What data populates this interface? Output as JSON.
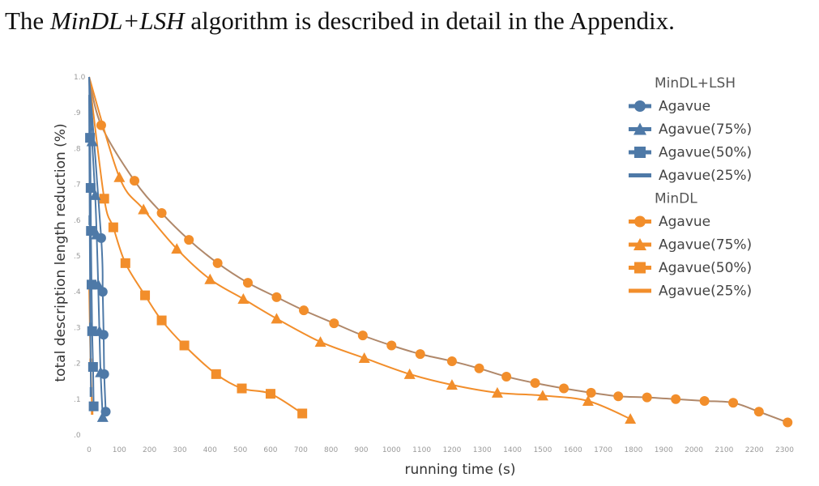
{
  "caption": {
    "prefix": "The ",
    "emph": "MinDL+LSH",
    "suffix": " algorithm is described in detail in the Appendix."
  },
  "colors": {
    "lsh": "#4e79a7",
    "mindl": "#f28e2b",
    "mindl_line": "#b0886a"
  },
  "chart_data": {
    "type": "line",
    "xlabel": "running time (s)",
    "ylabel": "total description length reduction (%)",
    "xlim": [
      0,
      2320
    ],
    "ylim": [
      0,
      1.0
    ],
    "x_ticks": [
      0,
      100,
      200,
      300,
      400,
      500,
      600,
      700,
      800,
      900,
      1000,
      1100,
      1200,
      1300,
      1400,
      1500,
      1600,
      1700,
      1800,
      1900,
      2000,
      2100,
      2200,
      2300
    ],
    "y_ticks": [
      0,
      0.1,
      0.2,
      0.3,
      0.4,
      0.5,
      0.6,
      0.7,
      0.8,
      0.9,
      1.0
    ],
    "y_tick_labels": [
      ".0",
      ".1",
      ".2",
      ".3",
      ".4",
      ".5",
      ".6",
      ".7",
      ".8",
      ".9",
      "1.0"
    ],
    "legend": [
      {
        "title": "MinDL+LSH",
        "items": [
          {
            "label": "Agavue",
            "marker": "circle",
            "color": "#4e79a7"
          },
          {
            "label": "Agavue(75%)",
            "marker": "triangle",
            "color": "#4e79a7"
          },
          {
            "label": "Agavue(50%)",
            "marker": "square",
            "color": "#4e79a7"
          },
          {
            "label": "Agavue(25%)",
            "marker": "bar",
            "color": "#4e79a7"
          }
        ]
      },
      {
        "title": "MinDL",
        "items": [
          {
            "label": "Agavue",
            "marker": "circle",
            "color": "#f28e2b"
          },
          {
            "label": "Agavue(75%)",
            "marker": "triangle",
            "color": "#f28e2b"
          },
          {
            "label": "Agavue(50%)",
            "marker": "square",
            "color": "#f28e2b"
          },
          {
            "label": "Agavue(25%)",
            "marker": "bar",
            "color": "#f28e2b"
          }
        ]
      }
    ],
    "series": [
      {
        "group": "MinDL",
        "marker": "circle",
        "color": "#f28e2b",
        "line_color": "#b0886a",
        "points": [
          [
            0,
            1.0
          ],
          [
            40,
            0.865
          ],
          [
            150,
            0.71
          ],
          [
            240,
            0.62
          ],
          [
            330,
            0.545
          ],
          [
            425,
            0.48
          ],
          [
            525,
            0.425
          ],
          [
            620,
            0.385
          ],
          [
            710,
            0.348
          ],
          [
            810,
            0.312
          ],
          [
            905,
            0.278
          ],
          [
            1000,
            0.25
          ],
          [
            1095,
            0.226
          ],
          [
            1200,
            0.206
          ],
          [
            1290,
            0.186
          ],
          [
            1380,
            0.163
          ],
          [
            1475,
            0.145
          ],
          [
            1570,
            0.13
          ],
          [
            1660,
            0.118
          ],
          [
            1750,
            0.108
          ],
          [
            1845,
            0.105
          ],
          [
            1940,
            0.1
          ],
          [
            2035,
            0.095
          ],
          [
            2130,
            0.09
          ],
          [
            2215,
            0.065
          ],
          [
            2310,
            0.035
          ]
        ]
      },
      {
        "group": "MinDL",
        "marker": "triangle",
        "color": "#f28e2b",
        "points": [
          [
            0,
            1.0
          ],
          [
            100,
            0.72
          ],
          [
            180,
            0.63
          ],
          [
            290,
            0.52
          ],
          [
            400,
            0.435
          ],
          [
            510,
            0.38
          ],
          [
            620,
            0.325
          ],
          [
            765,
            0.26
          ],
          [
            910,
            0.215
          ],
          [
            1060,
            0.17
          ],
          [
            1200,
            0.14
          ],
          [
            1350,
            0.118
          ],
          [
            1500,
            0.11
          ],
          [
            1650,
            0.095
          ],
          [
            1790,
            0.045
          ]
        ]
      },
      {
        "group": "MinDL",
        "marker": "square",
        "color": "#f28e2b",
        "points": [
          [
            0,
            1.0
          ],
          [
            50,
            0.66
          ],
          [
            80,
            0.58
          ],
          [
            120,
            0.48
          ],
          [
            185,
            0.39
          ],
          [
            240,
            0.32
          ],
          [
            315,
            0.25
          ],
          [
            420,
            0.17
          ],
          [
            505,
            0.13
          ],
          [
            600,
            0.115
          ],
          [
            705,
            0.06
          ]
        ]
      },
      {
        "group": "MinDL",
        "marker": "bar",
        "color": "#f28e2b",
        "points": [
          [
            0,
            0.42
          ],
          [
            5,
            0.2
          ],
          [
            10,
            0.07
          ]
        ]
      },
      {
        "group": "MinDL+LSH",
        "marker": "circle",
        "color": "#4e79a7",
        "points": [
          [
            0,
            1.0
          ],
          [
            40,
            0.55
          ],
          [
            45,
            0.4
          ],
          [
            48,
            0.28
          ],
          [
            50,
            0.17
          ],
          [
            55,
            0.065
          ]
        ]
      },
      {
        "group": "MinDL+LSH",
        "marker": "triangle",
        "color": "#4e79a7",
        "points": [
          [
            0,
            1.0
          ],
          [
            10,
            0.82
          ],
          [
            20,
            0.67
          ],
          [
            25,
            0.56
          ],
          [
            30,
            0.42
          ],
          [
            34,
            0.29
          ],
          [
            38,
            0.175
          ],
          [
            45,
            0.05
          ]
        ]
      },
      {
        "group": "MinDL+LSH",
        "marker": "square",
        "color": "#4e79a7",
        "points": [
          [
            0,
            1.0
          ],
          [
            3,
            0.83
          ],
          [
            5,
            0.69
          ],
          [
            6,
            0.57
          ],
          [
            8,
            0.42
          ],
          [
            10,
            0.29
          ],
          [
            13,
            0.19
          ],
          [
            15,
            0.08
          ]
        ]
      },
      {
        "group": "MinDL+LSH",
        "marker": "bar",
        "color": "#4e79a7",
        "points": [
          [
            0,
            0.95
          ],
          [
            2,
            0.6
          ],
          [
            4,
            0.3
          ],
          [
            6,
            0.12
          ]
        ]
      }
    ]
  }
}
